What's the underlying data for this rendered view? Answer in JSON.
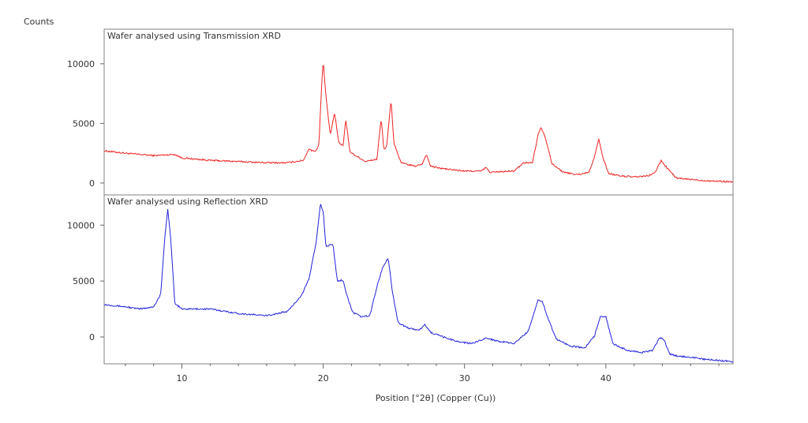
{
  "chart_data": {
    "type": "line",
    "y_axis_title": "Counts",
    "xlabel": "Position [°2θ] (Copper (Cu))",
    "xlim": [
      4.5,
      49
    ],
    "x_ticks": [
      10,
      20,
      30,
      40
    ],
    "grid": false,
    "legend": "none",
    "panels": [
      {
        "title": "Wafer analysed using Transmission XRD",
        "color": "#ee2222",
        "ylim": [
          -1000,
          12900
        ],
        "y_ticks": [
          0,
          5000,
          10000
        ],
        "series": [
          {
            "x": [
              4.5,
              6,
              8,
              9.5,
              10,
              12,
              14,
              16,
              17.5,
              18.6,
              19.0,
              19.2,
              19.5,
              19.7,
              19.9,
              20.0,
              20.2,
              20.5,
              20.8,
              21.1,
              21.4,
              21.6,
              21.9,
              22.3,
              23,
              23.8,
              24.1,
              24.3,
              24.5,
              24.8,
              25.0,
              25.5,
              26.5,
              27.0,
              27.3,
              27.6,
              28.5,
              30,
              31.2,
              31.5,
              31.8,
              33.5,
              34.2,
              34.8,
              35.2,
              35.4,
              35.7,
              36.2,
              37,
              38,
              38.8,
              39.2,
              39.5,
              39.8,
              40.2,
              41,
              42,
              43,
              43.5,
              43.9,
              44.3,
              45,
              46,
              47,
              48,
              49
            ],
            "values": [
              2700,
              2500,
              2300,
              2400,
              2100,
              1900,
              1800,
              1700,
              1700,
              1900,
              2900,
              2700,
              2700,
              3300,
              8500,
              10200,
              7200,
              4000,
              5900,
              3400,
              3100,
              5300,
              2600,
              2300,
              1800,
              2000,
              5400,
              2800,
              3100,
              7000,
              3400,
              1700,
              1400,
              1600,
              2400,
              1400,
              1200,
              1000,
              1000,
              1300,
              900,
              1000,
              1700,
              1700,
              4000,
              4700,
              3900,
              1600,
              900,
              700,
              900,
              2200,
              3700,
              2100,
              800,
              600,
              500,
              600,
              900,
              1900,
              1300,
              400,
              300,
              200,
              150,
              100
            ]
          }
        ]
      },
      {
        "title": "Wafer analysed using Reflection XRD",
        "color": "#2222dd",
        "ylim": [
          -2400,
          12700
        ],
        "y_ticks": [
          0,
          5000,
          10000
        ],
        "series": [
          {
            "x": [
              4.5,
              6,
              7,
              8,
              8.5,
              8.8,
              9.0,
              9.2,
              9.5,
              10,
              12,
              14,
              16,
              17.5,
              18.5,
              19.0,
              19.5,
              19.8,
              20.0,
              20.2,
              20.5,
              20.7,
              21.0,
              21.4,
              21.7,
              22.1,
              22.7,
              23.3,
              23.8,
              24.2,
              24.6,
              24.9,
              25.3,
              26,
              26.8,
              27.2,
              27.6,
              28.5,
              29.5,
              30.5,
              31.5,
              32.5,
              33.5,
              34.5,
              35.2,
              35.5,
              35.9,
              36.5,
              37.5,
              38.5,
              39.2,
              39.6,
              40.0,
              40.5,
              41.5,
              42.5,
              43.3,
              43.8,
              44.1,
              44.5,
              45,
              46,
              47,
              48,
              49
            ],
            "values": [
              2900,
              2700,
              2500,
              2700,
              3800,
              9000,
              11400,
              9000,
              3000,
              2500,
              2500,
              2100,
              1900,
              2300,
              3800,
              5200,
              8500,
              11900,
              11200,
              8000,
              8300,
              8200,
              5000,
              5100,
              3600,
              2200,
              1800,
              1900,
              4500,
              6200,
              7100,
              4000,
              1300,
              800,
              600,
              1100,
              400,
              0,
              -400,
              -600,
              -100,
              -400,
              -600,
              500,
              3300,
              3200,
              1700,
              -200,
              -800,
              -1000,
              100,
              1800,
              1800,
              -600,
              -1200,
              -1400,
              -1200,
              -100,
              -200,
              -1500,
              -1700,
              -1800,
              -2000,
              -2100,
              -2200
            ]
          }
        ]
      }
    ]
  }
}
